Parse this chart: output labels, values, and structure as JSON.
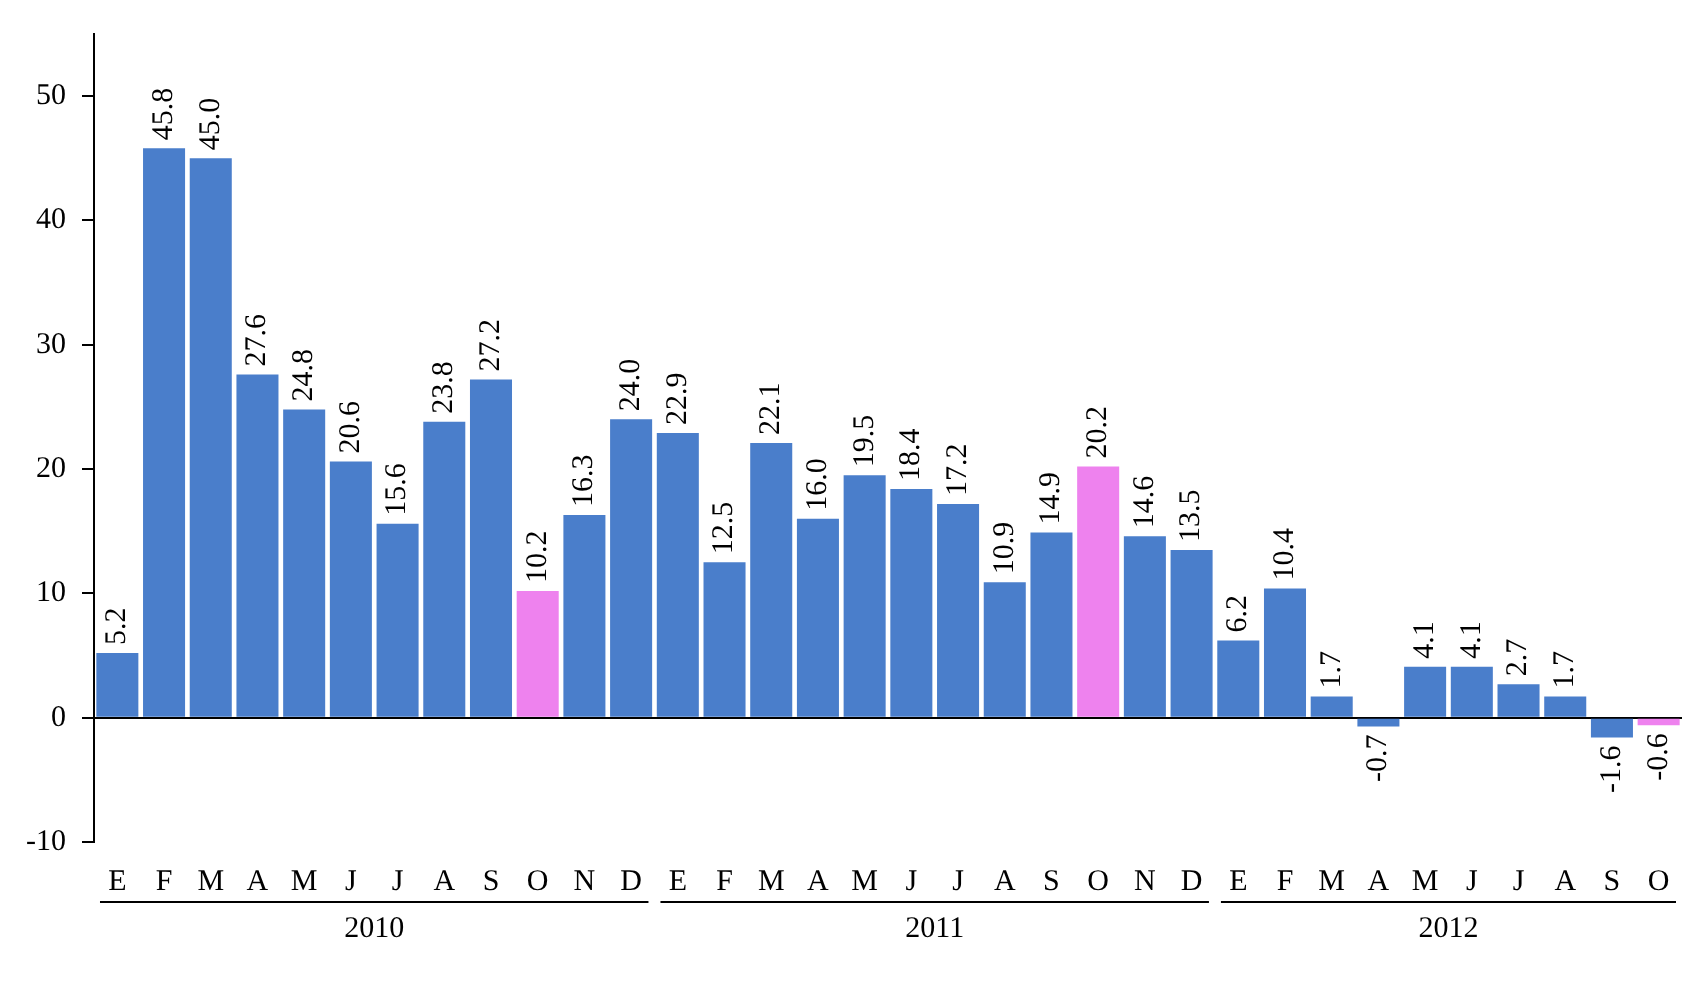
{
  "chart_data": {
    "type": "bar",
    "categories": [
      "E",
      "F",
      "M",
      "A",
      "M",
      "J",
      "J",
      "A",
      "S",
      "O",
      "N",
      "D",
      "E",
      "F",
      "M",
      "A",
      "M",
      "J",
      "J",
      "A",
      "S",
      "O",
      "N",
      "D",
      "E",
      "F",
      "M",
      "A",
      "M",
      "J",
      "J",
      "A",
      "S",
      "O"
    ],
    "values": [
      5.2,
      45.8,
      45.0,
      27.6,
      24.8,
      20.6,
      15.6,
      23.8,
      27.2,
      10.2,
      16.3,
      24.0,
      22.9,
      12.5,
      22.1,
      16.0,
      19.5,
      18.4,
      17.2,
      10.9,
      14.9,
      20.2,
      14.6,
      13.5,
      6.2,
      10.4,
      1.7,
      -0.7,
      4.1,
      4.1,
      2.7,
      1.7,
      -1.6,
      -0.6
    ],
    "value_labels": [
      "5.2",
      "45.8",
      "45.0",
      "27.6",
      "24.8",
      "20.6",
      "15.6",
      "23.8",
      "27.2",
      "10.2",
      "16.3",
      "24.0",
      "22.9",
      "12.5",
      "22.1",
      "16.0",
      "19.5",
      "18.4",
      "17.2",
      "10.9",
      "14.9",
      "20.2",
      "14.6",
      "13.5",
      "6.2",
      "10.4",
      "1.7",
      "-0.7",
      "4.1",
      "4.1",
      "2.7",
      "1.7",
      "-1.6",
      "-0.6"
    ],
    "colors": [
      "#4a7ecb",
      "#4a7ecb",
      "#4a7ecb",
      "#4a7ecb",
      "#4a7ecb",
      "#4a7ecb",
      "#4a7ecb",
      "#4a7ecb",
      "#4a7ecb",
      "#ee82ee",
      "#4a7ecb",
      "#4a7ecb",
      "#4a7ecb",
      "#4a7ecb",
      "#4a7ecb",
      "#4a7ecb",
      "#4a7ecb",
      "#4a7ecb",
      "#4a7ecb",
      "#4a7ecb",
      "#4a7ecb",
      "#ee82ee",
      "#4a7ecb",
      "#4a7ecb",
      "#4a7ecb",
      "#4a7ecb",
      "#4a7ecb",
      "#4a7ecb",
      "#4a7ecb",
      "#4a7ecb",
      "#4a7ecb",
      "#4a7ecb",
      "#4a7ecb",
      "#ee82ee"
    ],
    "ylim": [
      -10,
      55
    ],
    "yticks": [
      -10,
      0,
      10,
      20,
      30,
      40,
      50
    ],
    "annotations": [
      "2010",
      "2011",
      "2012"
    ]
  }
}
